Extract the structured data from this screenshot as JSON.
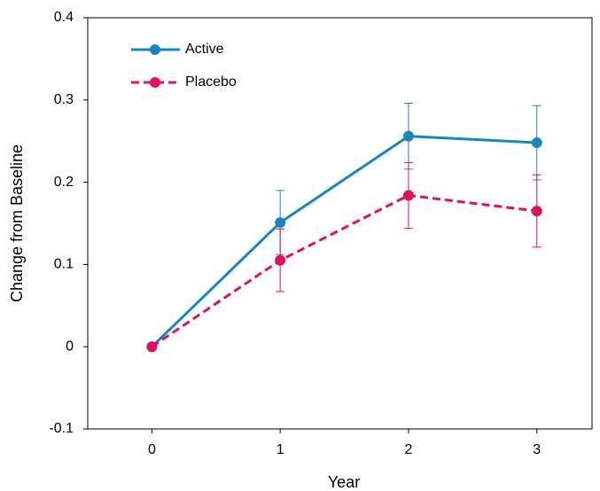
{
  "chart_data": {
    "type": "line",
    "x_label": "Year",
    "y_label": "Change from Baseline",
    "x": [
      0,
      1,
      2,
      3
    ],
    "series": [
      {
        "name": "Active",
        "color": "#1a86c1",
        "dash": false,
        "values": [
          0,
          0.151,
          0.256,
          0.248
        ],
        "errors": [
          0,
          0.039,
          0.04,
          0.045
        ]
      },
      {
        "name": "Placebo",
        "color": "#e0115f",
        "dash": true,
        "values": [
          0,
          0.105,
          0.184,
          0.165
        ],
        "errors": [
          0,
          0.038,
          0.04,
          0.044
        ]
      }
    ],
    "xlim": [
      -0.5,
      3.43
    ],
    "xticks": [
      0,
      1,
      2,
      3
    ],
    "ylim": [
      -0.1,
      0.4
    ],
    "yticks": [
      -0.1,
      0,
      0.1,
      0.2,
      0.3,
      0.4
    ],
    "legend": "upper-left",
    "grid": false
  }
}
